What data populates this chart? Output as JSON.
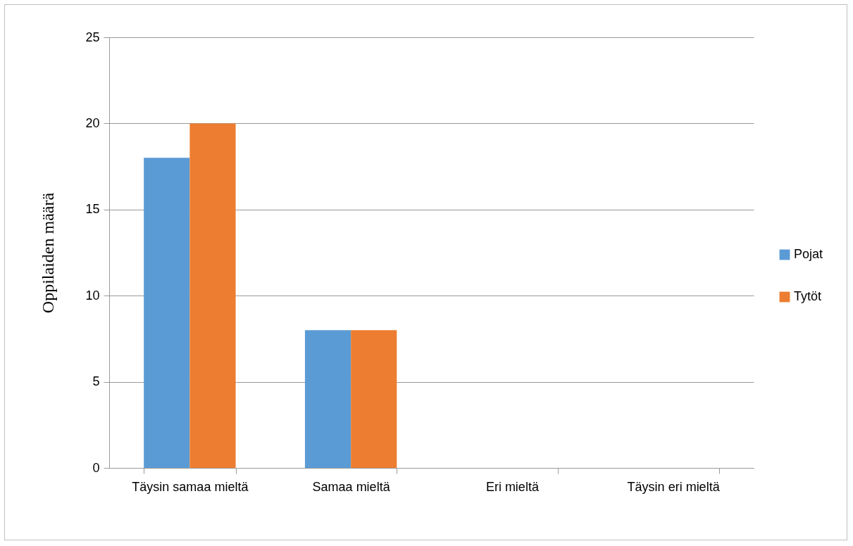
{
  "chart_data": {
    "type": "bar",
    "ylabel": "Oppilaiden määrä",
    "categories": [
      "Täysin samaa mieltä",
      "Samaa mieltä",
      "Eri mieltä",
      "Täysin eri mieltä"
    ],
    "series": [
      {
        "name": "Pojat",
        "color": "#5b9bd5",
        "values": [
          18,
          8,
          0,
          0
        ]
      },
      {
        "name": "Tytöt",
        "color": "#ed7d31",
        "values": [
          20,
          8,
          0,
          0
        ]
      }
    ],
    "ylim": [
      0,
      25
    ],
    "yticks": [
      0,
      5,
      10,
      15,
      20,
      25
    ],
    "grid": "y",
    "legend": "right"
  }
}
